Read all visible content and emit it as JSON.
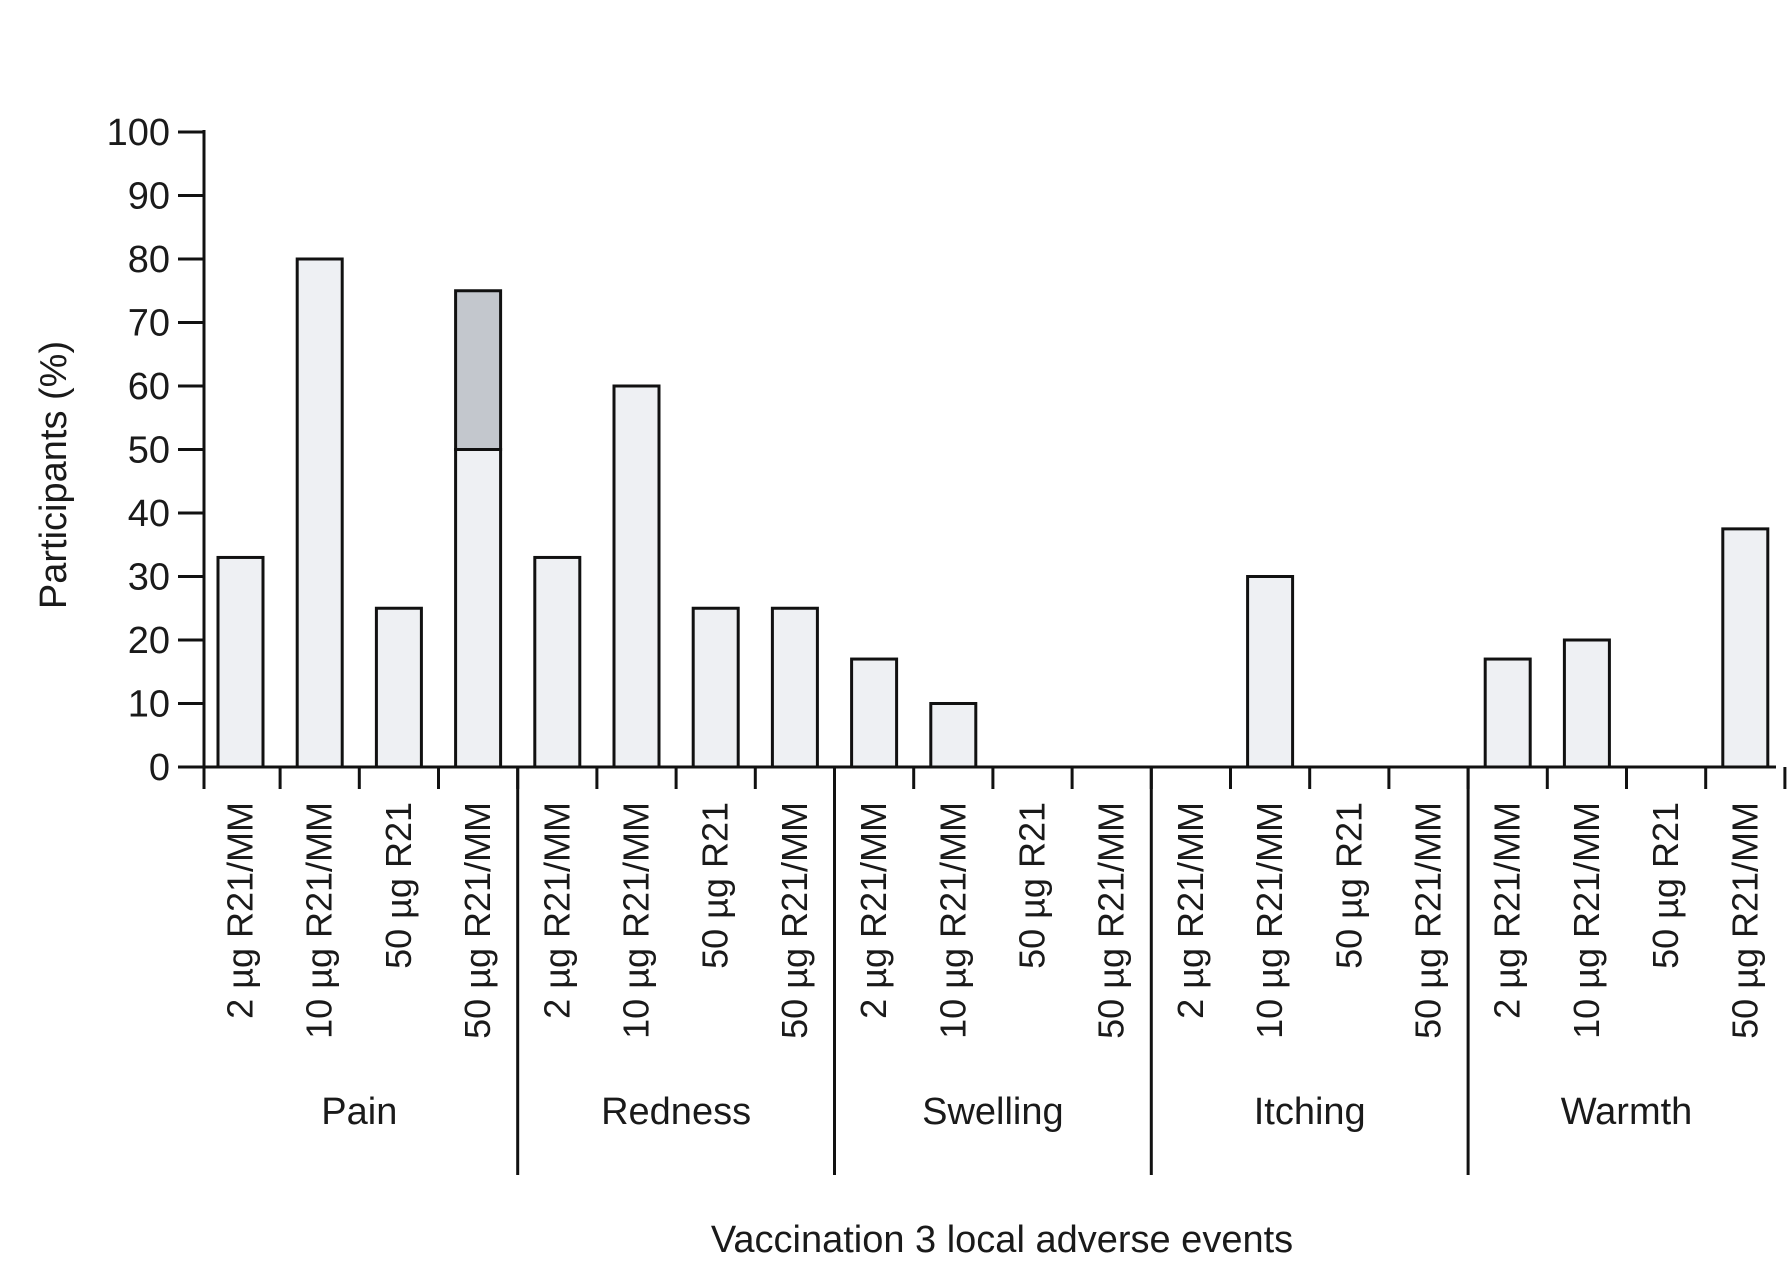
{
  "chart_data": {
    "type": "bar",
    "stacked": true,
    "title": "",
    "xlabel": "Vaccination 3 local adverse events",
    "ylabel": "Participants (%)",
    "ylim": [
      0,
      100
    ],
    "yticks": [
      0,
      10,
      20,
      30,
      40,
      50,
      60,
      70,
      80,
      90,
      100
    ],
    "grid": false,
    "legend": "none",
    "colors": {
      "segment1": "#eef0f3",
      "segment2": "#c3c7cd",
      "stroke": "#111111"
    },
    "groups": [
      {
        "label": "Pain",
        "bars": [
          {
            "category": "2 µg R21/MM",
            "segments": [
              33
            ]
          },
          {
            "category": "10 µg R21/MM",
            "segments": [
              80
            ]
          },
          {
            "category": "50 µg R21",
            "segments": [
              25
            ]
          },
          {
            "category": "50 µg R21/MM",
            "segments": [
              50,
              25
            ]
          }
        ]
      },
      {
        "label": "Redness",
        "bars": [
          {
            "category": "2 µg R21/MM",
            "segments": [
              33
            ]
          },
          {
            "category": "10 µg R21/MM",
            "segments": [
              60
            ]
          },
          {
            "category": "50 µg R21",
            "segments": [
              25
            ]
          },
          {
            "category": "50 µg R21/MM",
            "segments": [
              25
            ]
          }
        ]
      },
      {
        "label": "Swelling",
        "bars": [
          {
            "category": "2 µg R21/MM",
            "segments": [
              17
            ]
          },
          {
            "category": "10 µg R21/MM",
            "segments": [
              10
            ]
          },
          {
            "category": "50 µg R21",
            "segments": [
              0
            ]
          },
          {
            "category": "50 µg R21/MM",
            "segments": [
              0
            ]
          }
        ]
      },
      {
        "label": "Itching",
        "bars": [
          {
            "category": "2 µg R21/MM",
            "segments": [
              0
            ]
          },
          {
            "category": "10 µg R21/MM",
            "segments": [
              30
            ]
          },
          {
            "category": "50 µg R21",
            "segments": [
              0
            ]
          },
          {
            "category": "50 µg R21/MM",
            "segments": [
              0
            ]
          }
        ]
      },
      {
        "label": "Warmth",
        "bars": [
          {
            "category": "2 µg R21/MM",
            "segments": [
              17
            ]
          },
          {
            "category": "10 µg R21/MM",
            "segments": [
              20
            ]
          },
          {
            "category": "50 µg R21",
            "segments": [
              0
            ]
          },
          {
            "category": "50 µg R21/MM",
            "segments": [
              37.5
            ]
          }
        ]
      }
    ]
  }
}
